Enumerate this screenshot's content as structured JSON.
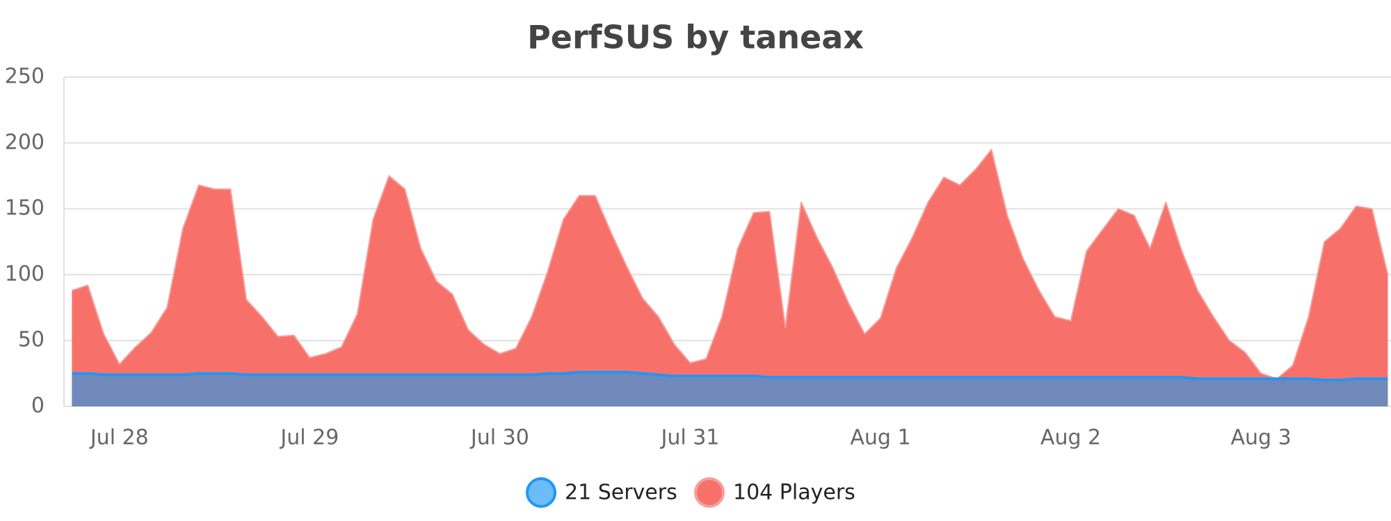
{
  "chart_data": {
    "type": "area",
    "title": "PerfSUS by taneax",
    "categories": [
      null,
      null,
      null,
      "Jul 28",
      null,
      null,
      null,
      null,
      null,
      null,
      null,
      null,
      null,
      null,
      null,
      "Jul 29",
      null,
      null,
      null,
      null,
      null,
      null,
      null,
      null,
      null,
      null,
      null,
      "Jul 30",
      null,
      null,
      null,
      null,
      null,
      null,
      null,
      null,
      null,
      null,
      null,
      "Jul 31",
      null,
      null,
      null,
      null,
      null,
      null,
      null,
      null,
      null,
      null,
      null,
      "Aug 1",
      null,
      null,
      null,
      null,
      null,
      null,
      null,
      null,
      null,
      null,
      null,
      "Aug 2",
      null,
      null,
      null,
      null,
      null,
      null,
      null,
      null,
      null,
      null,
      null,
      "Aug 3",
      null,
      null,
      null,
      null,
      null,
      null,
      null,
      null
    ],
    "series": [
      {
        "name": "104 Players",
        "color": "#f7716a",
        "line_color": "#f4a09b",
        "values": [
          88,
          92,
          55,
          32,
          45,
          56,
          75,
          135,
          168,
          165,
          165,
          81,
          68,
          53,
          54,
          37,
          40,
          45,
          70,
          142,
          175,
          165,
          120,
          95,
          85,
          58,
          47,
          40,
          44,
          68,
          102,
          142,
          160,
          160,
          132,
          106,
          82,
          68,
          47,
          33,
          36,
          68,
          120,
          147,
          148,
          60,
          155,
          128,
          105,
          78,
          55,
          67,
          105,
          128,
          155,
          174,
          168,
          180,
          195,
          145,
          112,
          88,
          68,
          65,
          118,
          134,
          150,
          145,
          120,
          155,
          118,
          88,
          68,
          50,
          41,
          25,
          21,
          31,
          68,
          125,
          135,
          152,
          150,
          100
        ]
      },
      {
        "name": "21 Servers",
        "color": "#7088ba",
        "line_color": "#2196f3",
        "values": [
          25,
          25,
          24,
          24,
          24,
          24,
          24,
          24,
          25,
          25,
          25,
          24,
          24,
          24,
          24,
          24,
          24,
          24,
          24,
          24,
          24,
          24,
          24,
          24,
          24,
          24,
          24,
          24,
          24,
          24,
          25,
          25,
          26,
          26,
          26,
          26,
          25,
          24,
          23,
          23,
          23,
          23,
          23,
          23,
          22,
          22,
          22,
          22,
          22,
          22,
          22,
          22,
          22,
          22,
          22,
          22,
          22,
          22,
          22,
          22,
          22,
          22,
          22,
          22,
          22,
          22,
          22,
          22,
          22,
          22,
          22,
          21,
          21,
          21,
          21,
          21,
          21,
          21,
          21,
          20,
          20,
          21,
          21,
          21
        ]
      }
    ],
    "legend_markers": [
      "#6bbcf8",
      "#f7716a"
    ],
    "ylim": [
      0,
      250
    ],
    "yticks": [
      0,
      50,
      100,
      150,
      200,
      250
    ],
    "grid": true,
    "legend": "bottom"
  }
}
